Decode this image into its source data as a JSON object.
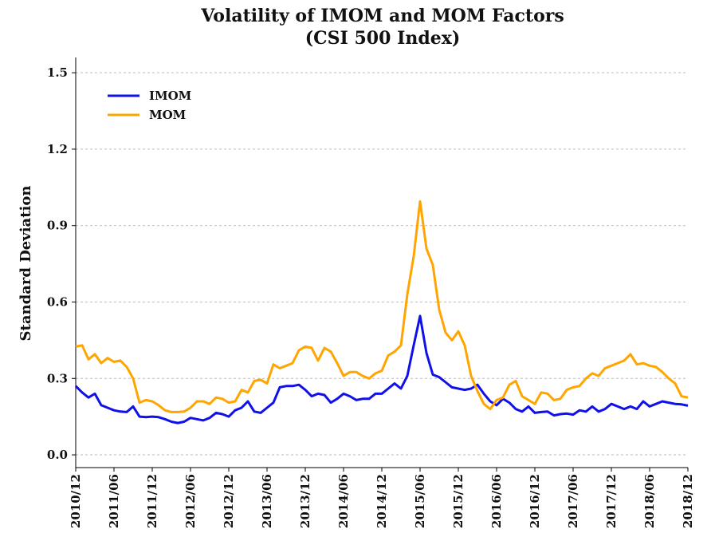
{
  "chart_data": {
    "type": "line",
    "title": "Volatility of IMOM and MOM Factors",
    "subtitle": "(CSI 500 Index)",
    "y_label": "Standard Deviation",
    "categories": [
      "2010/12",
      null,
      null,
      null,
      null,
      null,
      "2011/06",
      null,
      null,
      null,
      null,
      null,
      "2011/12",
      null,
      null,
      null,
      null,
      null,
      "2012/06",
      null,
      null,
      null,
      null,
      null,
      "2012/12",
      null,
      null,
      null,
      null,
      null,
      "2013/06",
      null,
      null,
      null,
      null,
      null,
      "2013/12",
      null,
      null,
      null,
      null,
      null,
      "2014/06",
      null,
      null,
      null,
      null,
      null,
      "2014/12",
      null,
      null,
      null,
      null,
      null,
      "2015/06",
      null,
      null,
      null,
      null,
      null,
      "2015/12",
      null,
      null,
      null,
      null,
      null,
      "2016/06",
      null,
      null,
      null,
      null,
      null,
      "2016/12",
      null,
      null,
      null,
      null,
      null,
      "2017/06",
      null,
      null,
      null,
      null,
      null,
      "2017/12",
      null,
      null,
      null,
      null,
      null,
      "2018/06",
      null,
      null,
      null,
      null,
      null,
      "2018/12"
    ],
    "series": [
      {
        "name": "IMOM",
        "color": "#1010e8",
        "values": [
          0.27,
          0.245,
          0.225,
          0.24,
          0.195,
          0.185,
          0.175,
          0.17,
          0.168,
          0.19,
          0.15,
          0.148,
          0.15,
          0.148,
          0.14,
          0.13,
          0.125,
          0.13,
          0.145,
          0.14,
          0.135,
          0.145,
          0.165,
          0.16,
          0.15,
          0.175,
          0.185,
          0.21,
          0.17,
          0.165,
          0.185,
          0.205,
          0.265,
          0.27,
          0.27,
          0.275,
          0.255,
          0.23,
          0.24,
          0.235,
          0.205,
          0.22,
          0.24,
          0.23,
          0.215,
          0.22,
          0.22,
          0.24,
          0.24,
          0.26,
          0.28,
          0.26,
          0.31,
          0.43,
          0.545,
          0.4,
          0.315,
          0.305,
          0.285,
          0.265,
          0.26,
          0.255,
          0.26,
          0.275,
          0.24,
          0.21,
          0.195,
          0.22,
          0.205,
          0.18,
          0.17,
          0.19,
          0.165,
          0.168,
          0.17,
          0.155,
          0.16,
          0.162,
          0.158,
          0.175,
          0.17,
          0.19,
          0.17,
          0.18,
          0.2,
          0.19,
          0.18,
          0.19,
          0.18,
          0.21,
          0.19,
          0.2,
          0.21,
          0.205,
          0.2,
          0.198,
          0.193
        ]
      },
      {
        "name": "MOM",
        "color": "#ffa500",
        "values": [
          0.425,
          0.43,
          0.375,
          0.395,
          0.36,
          0.38,
          0.365,
          0.37,
          0.345,
          0.3,
          0.205,
          0.215,
          0.21,
          0.195,
          0.175,
          0.168,
          0.168,
          0.17,
          0.185,
          0.21,
          0.21,
          0.2,
          0.225,
          0.22,
          0.205,
          0.21,
          0.255,
          0.245,
          0.29,
          0.295,
          0.28,
          0.355,
          0.34,
          0.35,
          0.36,
          0.41,
          0.425,
          0.42,
          0.37,
          0.42,
          0.405,
          0.36,
          0.31,
          0.325,
          0.325,
          0.31,
          0.3,
          0.32,
          0.33,
          0.39,
          0.405,
          0.43,
          0.63,
          0.78,
          0.995,
          0.81,
          0.745,
          0.57,
          0.48,
          0.45,
          0.485,
          0.43,
          0.31,
          0.25,
          0.2,
          0.18,
          0.215,
          0.225,
          0.275,
          0.29,
          0.23,
          0.215,
          0.2,
          0.245,
          0.24,
          0.215,
          0.22,
          0.255,
          0.265,
          0.27,
          0.3,
          0.32,
          0.31,
          0.34,
          0.35,
          0.36,
          0.37,
          0.395,
          0.355,
          0.36,
          0.35,
          0.345,
          0.325,
          0.3,
          0.28,
          0.23,
          0.225
        ]
      }
    ],
    "ylim": [
      -0.05,
      1.56
    ],
    "yticks": [
      {
        "value": 0,
        "label": "0.0"
      },
      0.3,
      0.6,
      0.9,
      1.2,
      1.5
    ],
    "grid": true,
    "legend": "upper left"
  }
}
